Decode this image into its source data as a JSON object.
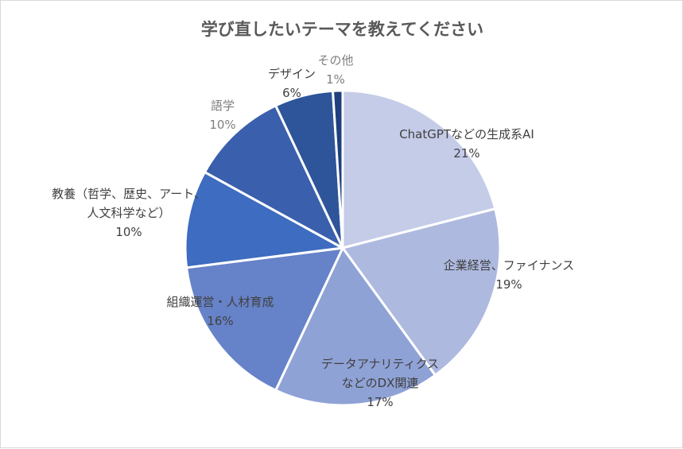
{
  "chart_data": {
    "type": "pie",
    "title": "学び直したいテーマを教えてください",
    "slices": [
      {
        "label": [
          "ChatGPTなどの生成系AI"
        ],
        "value": 21,
        "value_label": "21%",
        "color": "#c5cce8"
      },
      {
        "label": [
          "企業経営、ファイナンス"
        ],
        "value": 19,
        "value_label": "19%",
        "color": "#adb9df"
      },
      {
        "label": [
          "データアナリティクス",
          "などのDX関連"
        ],
        "value": 17,
        "value_label": "17%",
        "color": "#8fa2d5"
      },
      {
        "label": [
          "組織運営・人材育成"
        ],
        "value": 16,
        "value_label": "16%",
        "color": "#6682c8"
      },
      {
        "label": [
          "教養（哲学、歴史、アート、",
          "人文科学など）"
        ],
        "value": 10,
        "value_label": "10%",
        "color": "#3d6cc0"
      },
      {
        "label": [
          "語学"
        ],
        "value": 10,
        "value_label": "10%",
        "color": "#3a5fad"
      },
      {
        "label": [
          "デザイン"
        ],
        "value": 6,
        "value_label": "6%",
        "color": "#2e5499"
      },
      {
        "label": [
          "その他"
        ],
        "value": 1,
        "value_label": "1%",
        "color": "#1f3f7d"
      }
    ]
  }
}
